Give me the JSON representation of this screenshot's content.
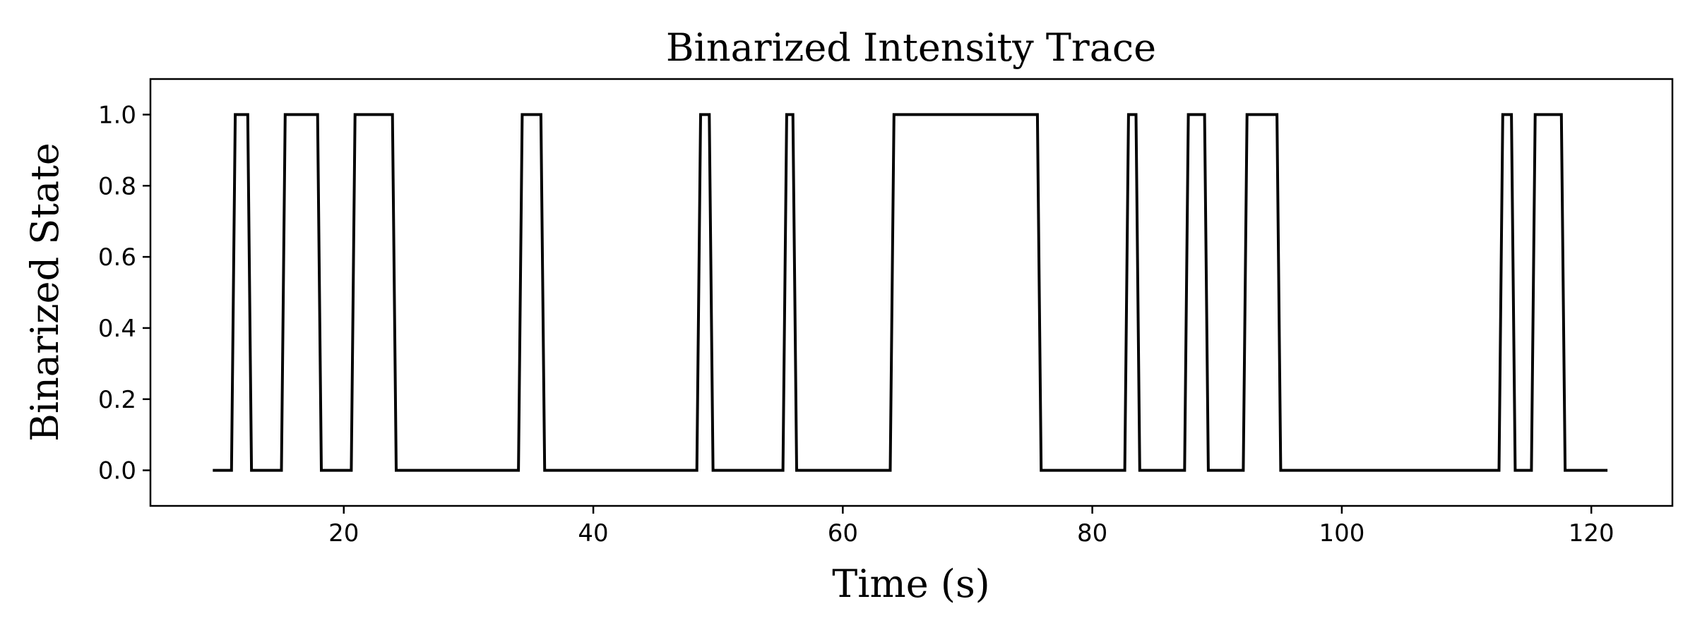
{
  "chart_data": {
    "type": "line",
    "title": "Binarized Intensity Trace",
    "xlabel": "Time (s)",
    "ylabel": "Binarized State",
    "xlim": [
      4.5,
      126.5
    ],
    "ylim": [
      -0.1,
      1.1
    ],
    "xticks": [
      20,
      40,
      60,
      80,
      100,
      120
    ],
    "yticks": [
      0.0,
      0.2,
      0.4,
      0.6,
      0.8,
      1.0
    ],
    "xtick_labels": [
      "20",
      "40",
      "60",
      "80",
      "100",
      "120"
    ],
    "ytick_labels": [
      "0.0",
      "0.2",
      "0.4",
      "0.6",
      "0.8",
      "1.0"
    ],
    "grid": false,
    "line_color": "#000000",
    "series": [
      {
        "x": [
          9.5,
          11.0,
          11.3,
          12.3,
          12.6,
          15.0,
          15.3,
          17.9,
          18.2,
          20.6,
          20.9,
          23.9,
          24.2,
          34.0,
          34.3,
          35.8,
          36.1,
          48.3,
          48.6,
          49.3,
          49.6,
          55.2,
          55.5,
          56.0,
          56.3,
          63.8,
          64.1,
          75.6,
          75.9,
          82.6,
          82.9,
          83.5,
          83.8,
          87.4,
          87.7,
          89.0,
          89.3,
          92.1,
          92.4,
          94.8,
          95.1,
          112.6,
          112.9,
          113.6,
          113.9,
          115.2,
          115.5,
          117.6,
          117.9,
          121.3
        ],
        "y": [
          0,
          0,
          1,
          1,
          0,
          0,
          1,
          1,
          0,
          0,
          1,
          1,
          0,
          0,
          1,
          1,
          0,
          0,
          1,
          1,
          0,
          0,
          1,
          1,
          0,
          0,
          1,
          1,
          0,
          0,
          1,
          1,
          0,
          0,
          1,
          1,
          0,
          0,
          1,
          1,
          0,
          0,
          1,
          1,
          0,
          0,
          1,
          1,
          0,
          0
        ]
      }
    ]
  }
}
